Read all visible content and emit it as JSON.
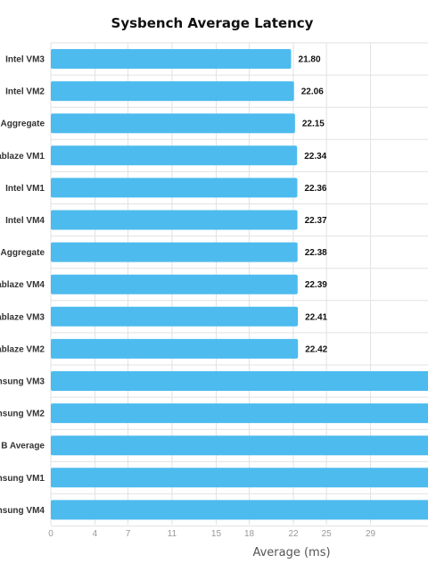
{
  "chart_data": {
    "type": "bar",
    "orientation": "horizontal",
    "title": "Sysbench Average Latency",
    "xlabel": "Average (ms)",
    "ylabel": "",
    "xlim": [
      0,
      33
    ],
    "x_ticks": [
      0,
      4,
      7,
      11,
      15,
      18,
      22,
      25,
      29
    ],
    "x_tick_labels": [
      "0",
      "4",
      "7",
      "11",
      "15",
      "18",
      "22",
      "25",
      "29"
    ],
    "grid": true,
    "bar_color": "#4dbbee",
    "categories": [
      "Intel VM3",
      "Intel VM2",
      "Aggregate",
      "ablaze VM1",
      "Intel VM1",
      "Intel VM4",
      "Aggregate",
      "ablaze VM4",
      "ablaze VM3",
      "ablaze VM2",
      "nsung VM3",
      "nsung VM2",
      "B Average",
      "nsung VM1",
      "nsung VM4"
    ],
    "values": [
      21.8,
      22.06,
      22.15,
      22.34,
      22.36,
      22.37,
      22.38,
      22.39,
      22.41,
      22.42,
      null,
      null,
      null,
      null,
      null
    ],
    "value_labels": [
      "21.80",
      "22.06",
      "22.15",
      "22.34",
      "22.36",
      "22.37",
      "22.38",
      "22.39",
      "22.41",
      "22.42",
      "",
      "",
      "",
      "",
      ""
    ],
    "note_values": "Last five bars extend beyond the visible right edge; their values are not shown."
  }
}
